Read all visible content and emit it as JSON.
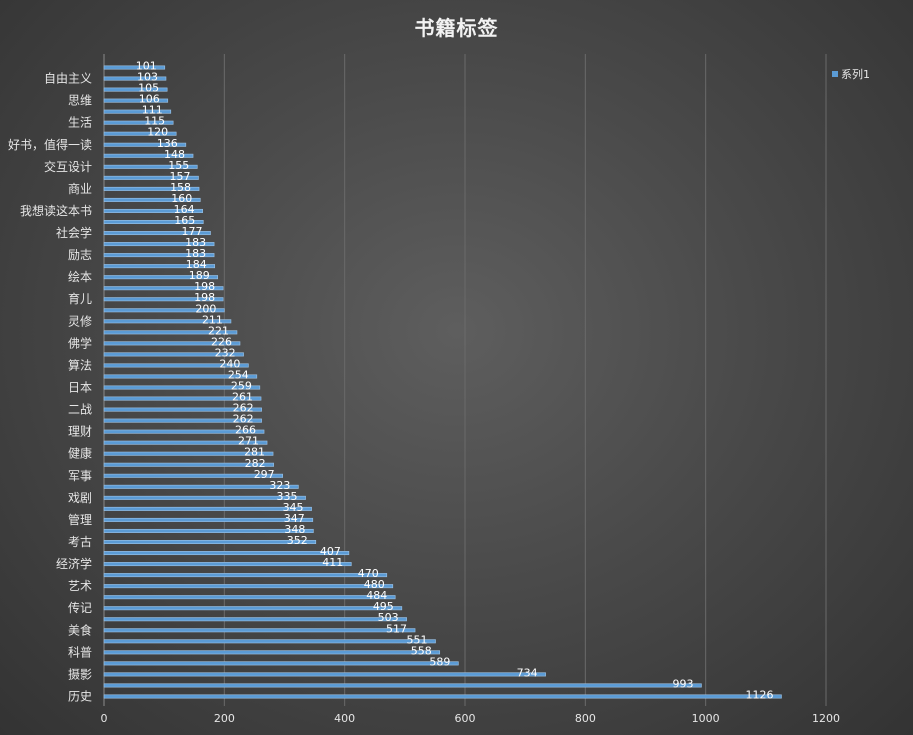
{
  "chart_data": {
    "type": "bar",
    "orientation": "horizontal",
    "title": "书籍标签",
    "categories": [
      "历史",
      "",
      "摄影",
      "",
      "科普",
      "",
      "美食",
      "",
      "传记",
      "",
      "艺术",
      "",
      "经济学",
      "",
      "考古",
      "",
      "管理",
      "",
      "戏剧",
      "",
      "军事",
      "",
      "健康",
      "",
      "理财",
      "",
      "二战",
      "",
      "日本",
      "",
      "算法",
      "",
      "佛学",
      "",
      "灵修",
      "",
      "育儿",
      "",
      "绘本",
      "",
      "励志",
      "",
      "社会学",
      "",
      "我想读这本书",
      "",
      "商业",
      "",
      "交互设计",
      "",
      "好书，值得一读",
      "",
      "生活",
      "",
      "思维",
      "",
      "自由主义",
      ""
    ],
    "series": [
      {
        "name": "系列1",
        "values": [
          1126,
          993,
          734,
          589,
          558,
          551,
          517,
          503,
          495,
          484,
          480,
          470,
          411,
          407,
          352,
          348,
          347,
          345,
          335,
          323,
          297,
          282,
          281,
          271,
          266,
          262,
          262,
          261,
          259,
          254,
          240,
          232,
          226,
          221,
          211,
          200,
          198,
          198,
          189,
          184,
          183,
          183,
          177,
          165,
          164,
          160,
          158,
          157,
          155,
          148,
          136,
          120,
          115,
          111,
          106,
          105,
          103,
          101
        ]
      }
    ],
    "xlim": [
      0,
      1200
    ],
    "xticks": [
      0,
      200,
      400,
      600,
      800,
      1000,
      1200
    ],
    "grid": true,
    "legend": "top-right",
    "colors": {
      "bar": "#5b9bd5",
      "bar_edge": "#9dc3e6",
      "grid": "#6a6a6a",
      "text": "#e6e6e6"
    }
  }
}
